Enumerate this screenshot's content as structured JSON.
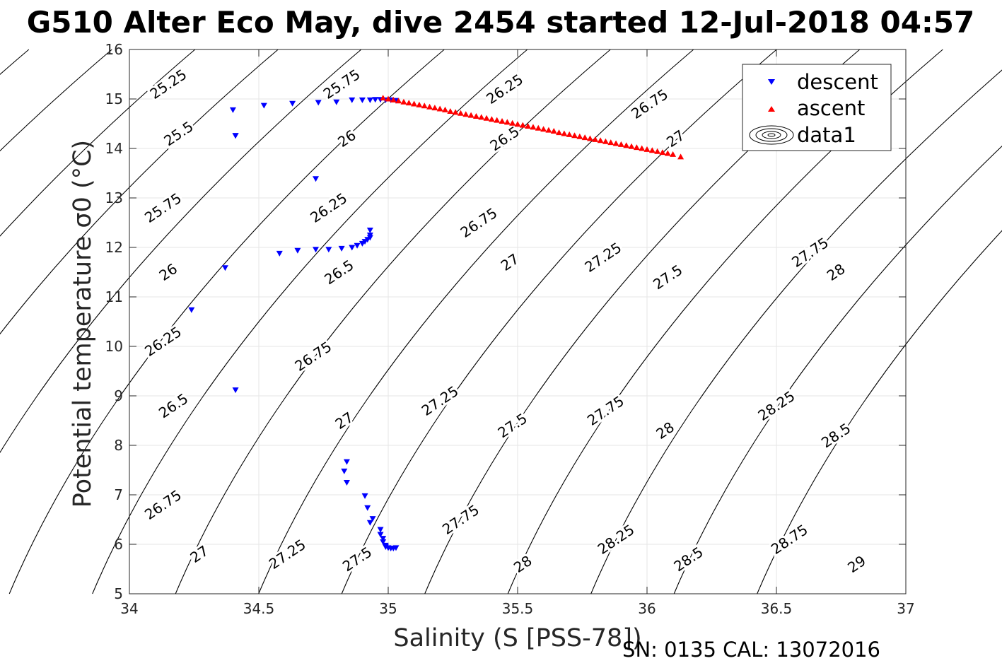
{
  "chart_data": {
    "type": "scatter",
    "title": "G510 Alter Eco May, dive 2454 started 12-Jul-2018 04:57",
    "xlabel": "Salinity (S [PSS-78])",
    "ylabel": "Potential temperature σ0 (°C)",
    "xlim": [
      34,
      37
    ],
    "ylim": [
      5,
      16
    ],
    "xticks": [
      34,
      34.5,
      35,
      35.5,
      36,
      36.5,
      37
    ],
    "xtick_labels": [
      "34",
      "34.5",
      "35",
      "35.5",
      "36",
      "36.5",
      "37"
    ],
    "yticks": [
      5,
      6,
      7,
      8,
      9,
      10,
      11,
      12,
      13,
      14,
      15,
      16
    ],
    "ytick_labels": [
      "5",
      "6",
      "7",
      "8",
      "9",
      "10",
      "11",
      "12",
      "13",
      "14",
      "15",
      "16"
    ],
    "grid": true,
    "legend_position": "top-right",
    "footnote": "SN: 0135  CAL: 13072016",
    "colors": {
      "descent": "#0000ff",
      "ascent": "#ff0000",
      "contour": "#000000",
      "grid": "#e6e6e6"
    },
    "series": [
      {
        "name": "descent",
        "marker": "triangle-down",
        "x": [
          34.4,
          34.41,
          34.52,
          34.63,
          34.73,
          34.8,
          34.86,
          34.9,
          34.93,
          34.95,
          34.97,
          34.99,
          35.01,
          35.03,
          34.41,
          34.72,
          34.37,
          34.58,
          34.65,
          34.72,
          34.77,
          34.82,
          34.86,
          34.88,
          34.9,
          34.91,
          34.92,
          34.93,
          34.93,
          34.93,
          34.24,
          34.41,
          34.84,
          34.83,
          34.84,
          34.91,
          34.92,
          34.94,
          34.93,
          34.97,
          34.97,
          34.98,
          34.98,
          34.99,
          34.99,
          35.0,
          35.01,
          35.02,
          35.03
        ],
        "y": [
          14.78,
          14.26,
          14.87,
          14.91,
          14.93,
          14.94,
          14.98,
          14.98,
          14.98,
          14.99,
          14.99,
          14.98,
          14.98,
          14.97,
          14.26,
          13.39,
          11.59,
          11.88,
          11.94,
          11.96,
          11.96,
          11.98,
          12.0,
          12.04,
          12.08,
          12.12,
          12.16,
          12.2,
          12.25,
          12.35,
          10.74,
          9.12,
          7.67,
          7.48,
          7.25,
          6.98,
          6.74,
          6.52,
          6.44,
          6.3,
          6.2,
          6.12,
          6.05,
          5.98,
          5.95,
          5.93,
          5.92,
          5.92,
          5.93
        ]
      },
      {
        "name": "ascent",
        "marker": "triangle-up",
        "x_range": [
          34.98,
          36.13
        ],
        "y_range": [
          15.02,
          13.83
        ],
        "x": [
          34.98,
          35.0,
          35.02,
          35.04,
          35.06,
          35.08,
          35.1,
          35.12,
          35.14,
          35.16,
          35.18,
          35.2,
          35.22,
          35.24,
          35.26,
          35.28,
          35.3,
          35.32,
          35.34,
          35.36,
          35.38,
          35.4,
          35.42,
          35.44,
          35.46,
          35.48,
          35.5,
          35.52,
          35.54,
          35.56,
          35.58,
          35.6,
          35.62,
          35.64,
          35.66,
          35.68,
          35.7,
          35.72,
          35.74,
          35.76,
          35.78,
          35.8,
          35.82,
          35.84,
          35.86,
          35.88,
          35.9,
          35.92,
          35.94,
          35.96,
          35.98,
          36.0,
          36.02,
          36.04,
          36.06,
          36.08,
          36.1,
          36.13
        ],
        "y": [
          15.02,
          15.0,
          14.98,
          14.96,
          14.94,
          14.92,
          14.9,
          14.88,
          14.86,
          14.84,
          14.82,
          14.8,
          14.78,
          14.75,
          14.73,
          14.71,
          14.69,
          14.67,
          14.65,
          14.63,
          14.61,
          14.59,
          14.57,
          14.55,
          14.53,
          14.51,
          14.49,
          14.47,
          14.45,
          14.43,
          14.41,
          14.39,
          14.37,
          14.35,
          14.32,
          14.3,
          14.28,
          14.26,
          14.24,
          14.22,
          14.2,
          14.18,
          14.16,
          14.14,
          14.12,
          14.1,
          14.08,
          14.06,
          14.04,
          14.02,
          14.0,
          13.98,
          13.96,
          13.94,
          13.92,
          13.9,
          13.88,
          13.83
        ]
      },
      {
        "name": "data1",
        "type": "contour",
        "levels": [
          25.25,
          25.5,
          25.75,
          26,
          26.25,
          26.5,
          26.75,
          27,
          27.25,
          27.5,
          27.75,
          28,
          28.25,
          28.5,
          28.75,
          29
        ],
        "level_labels": [
          "25.25",
          "25.5",
          "25.75",
          "26",
          "26.25",
          "26.5",
          "26.75",
          "27",
          "27.25",
          "27.5",
          "27.75",
          "28",
          "28.25",
          "28.5",
          "28.75",
          "29"
        ],
        "labels": [
          {
            "text": "25.25",
            "x": 34.15,
            "y": 15.3
          },
          {
            "text": "25.5",
            "x": 34.19,
            "y": 14.3
          },
          {
            "text": "25.75",
            "x": 34.13,
            "y": 12.8
          },
          {
            "text": "26",
            "x": 34.15,
            "y": 11.5
          },
          {
            "text": "26.25",
            "x": 34.13,
            "y": 10.1
          },
          {
            "text": "26.5",
            "x": 34.17,
            "y": 8.8
          },
          {
            "text": "26.75",
            "x": 34.13,
            "y": 6.8
          },
          {
            "text": "27",
            "x": 34.27,
            "y": 5.8
          },
          {
            "text": "25.75",
            "x": 34.82,
            "y": 15.3
          },
          {
            "text": "26",
            "x": 34.84,
            "y": 14.2
          },
          {
            "text": "26.25",
            "x": 34.77,
            "y": 12.8
          },
          {
            "text": "26.5",
            "x": 34.81,
            "y": 11.5
          },
          {
            "text": "26.75",
            "x": 34.71,
            "y": 9.8
          },
          {
            "text": "27",
            "x": 34.83,
            "y": 8.5
          },
          {
            "text": "27.25",
            "x": 34.61,
            "y": 5.8
          },
          {
            "text": "27.5",
            "x": 34.88,
            "y": 5.7
          },
          {
            "text": "26.25",
            "x": 35.45,
            "y": 15.2
          },
          {
            "text": "26.5",
            "x": 35.45,
            "y": 14.2
          },
          {
            "text": "26.75",
            "x": 35.35,
            "y": 12.5
          },
          {
            "text": "27",
            "x": 35.47,
            "y": 11.7
          },
          {
            "text": "27.25",
            "x": 35.2,
            "y": 8.9
          },
          {
            "text": "27.5",
            "x": 35.48,
            "y": 8.4
          },
          {
            "text": "27.75",
            "x": 35.28,
            "y": 6.5
          },
          {
            "text": "28",
            "x": 35.52,
            "y": 5.6
          },
          {
            "text": "26.75",
            "x": 36.01,
            "y": 14.9
          },
          {
            "text": "27",
            "x": 36.11,
            "y": 14.2
          },
          {
            "text": "27.25",
            "x": 35.83,
            "y": 11.8
          },
          {
            "text": "27.5",
            "x": 36.08,
            "y": 11.4
          },
          {
            "text": "27.75",
            "x": 35.84,
            "y": 8.7
          },
          {
            "text": "28",
            "x": 36.07,
            "y": 8.3
          },
          {
            "text": "28.25",
            "x": 35.88,
            "y": 6.1
          },
          {
            "text": "28.5",
            "x": 36.16,
            "y": 5.7
          },
          {
            "text": "27.75",
            "x": 36.63,
            "y": 11.9
          },
          {
            "text": "28",
            "x": 36.73,
            "y": 11.5
          },
          {
            "text": "28.25",
            "x": 36.5,
            "y": 8.8
          },
          {
            "text": "28.5",
            "x": 36.73,
            "y": 8.2
          },
          {
            "text": "28.75",
            "x": 36.55,
            "y": 6.1
          },
          {
            "text": "29",
            "x": 36.81,
            "y": 5.6
          }
        ]
      }
    ]
  }
}
